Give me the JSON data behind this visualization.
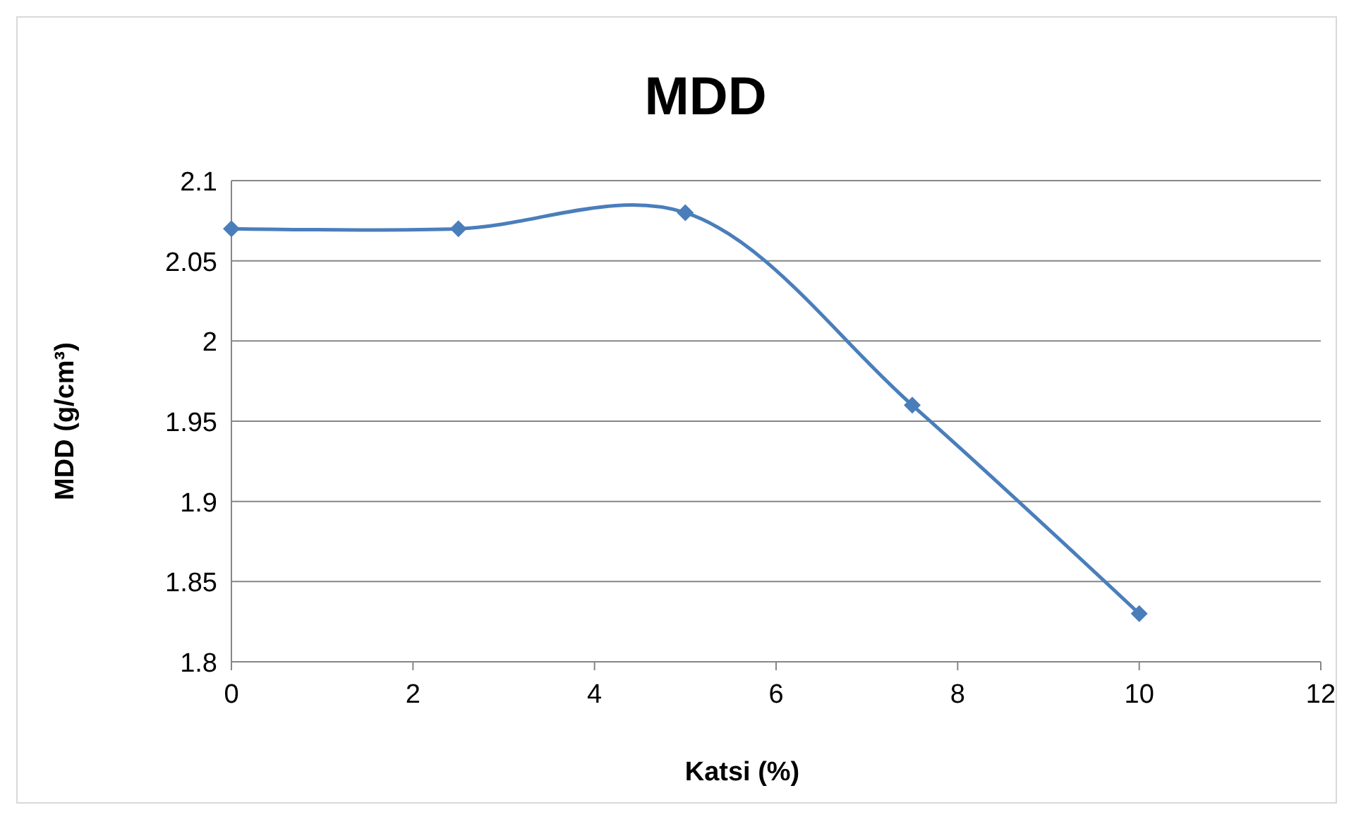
{
  "chart_data": {
    "type": "line",
    "title": "MDD",
    "xlabel": "Katsi (%)",
    "ylabel": "MDD (g/cm³)",
    "x": [
      0,
      2.5,
      5,
      7.5,
      10
    ],
    "series": [
      {
        "color": "#4a7ebb",
        "values": [
          2.07,
          2.07,
          2.08,
          1.96,
          1.83
        ]
      }
    ],
    "xlim": [
      0,
      12
    ],
    "xticks": [
      0,
      2,
      4,
      6,
      8,
      10,
      12
    ],
    "ylim": [
      1.8,
      2.1
    ],
    "yticks": [
      1.8,
      1.85,
      1.9,
      1.95,
      2,
      2.05,
      2.1
    ],
    "grid": "y",
    "marker": "diamond",
    "line_style": "solid"
  }
}
